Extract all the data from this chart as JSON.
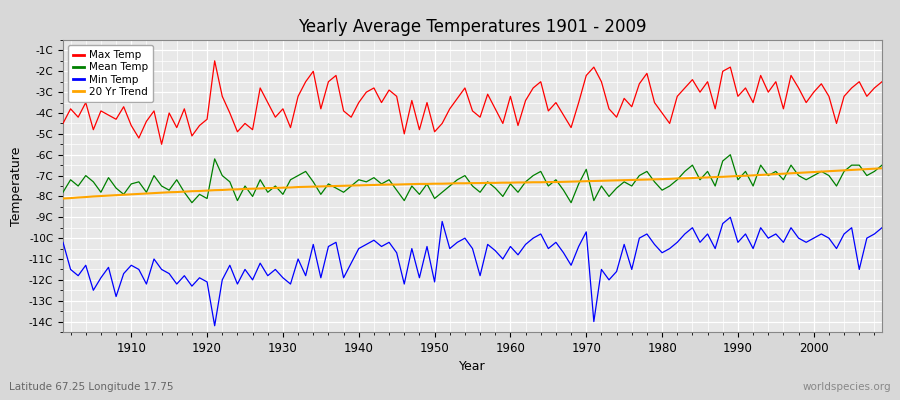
{
  "title": "Yearly Average Temperatures 1901 - 2009",
  "xlabel": "Year",
  "ylabel": "Temperature",
  "lat_lon_text": "Latitude 67.25 Longitude 17.75",
  "source_text": "worldspecies.org",
  "year_start": 1901,
  "year_end": 2009,
  "ylim": [
    -14.5,
    -0.5
  ],
  "yticks": [
    -14,
    -13,
    -12,
    -11,
    -10,
    -9,
    -8,
    -7,
    -6,
    -5,
    -4,
    -3,
    -2,
    -1
  ],
  "ytick_labels": [
    "-14C",
    "-13C",
    "-12C",
    "-11C",
    "-10C",
    "-9C",
    "-8C",
    "-7C",
    "-6C",
    "-5C",
    "-4C",
    "-3C",
    "-2C",
    "-1C"
  ],
  "max_temp_color": "#ff0000",
  "mean_temp_color": "#008000",
  "min_temp_color": "#0000ff",
  "trend_color": "#ffa500",
  "fig_bg_color": "#d8d8d8",
  "plot_bg_color": "#e8e8e8",
  "grid_color": "#ffffff",
  "legend_labels": [
    "Max Temp",
    "Mean Temp",
    "Min Temp",
    "20 Yr Trend"
  ],
  "max_temp": [
    -4.5,
    -3.8,
    -4.2,
    -3.5,
    -4.8,
    -3.9,
    -4.1,
    -4.3,
    -3.7,
    -4.6,
    -5.2,
    -4.4,
    -3.9,
    -5.5,
    -4.0,
    -4.7,
    -3.8,
    -5.1,
    -4.6,
    -4.3,
    -1.5,
    -3.2,
    -4.0,
    -4.9,
    -4.5,
    -4.8,
    -2.8,
    -3.5,
    -4.2,
    -3.8,
    -4.7,
    -3.2,
    -2.5,
    -2.0,
    -3.8,
    -2.5,
    -2.2,
    -3.9,
    -4.2,
    -3.5,
    -3.0,
    -2.8,
    -3.5,
    -2.9,
    -3.2,
    -5.0,
    -3.4,
    -4.8,
    -3.5,
    -4.9,
    -4.5,
    -3.8,
    -3.3,
    -2.8,
    -3.9,
    -4.2,
    -3.1,
    -3.8,
    -4.5,
    -3.2,
    -4.6,
    -3.4,
    -2.8,
    -2.5,
    -3.9,
    -3.5,
    -4.1,
    -4.7,
    -3.5,
    -2.2,
    -1.8,
    -2.5,
    -3.8,
    -4.2,
    -3.3,
    -3.7,
    -2.6,
    -2.1,
    -3.5,
    -4.0,
    -4.5,
    -3.2,
    -2.8,
    -2.4,
    -3.0,
    -2.5,
    -3.8,
    -2.0,
    -1.8,
    -3.2,
    -2.8,
    -3.5,
    -2.2,
    -3.0,
    -2.5,
    -3.8,
    -2.2,
    -2.8,
    -3.5,
    -3.0,
    -2.6,
    -3.2,
    -4.5,
    -3.2,
    -2.8,
    -2.5,
    -3.2,
    -2.8,
    -2.5
  ],
  "mean_temp": [
    -7.8,
    -7.2,
    -7.5,
    -7.0,
    -7.3,
    -7.8,
    -7.1,
    -7.6,
    -7.9,
    -7.4,
    -7.3,
    -7.8,
    -7.0,
    -7.5,
    -7.7,
    -7.2,
    -7.8,
    -8.3,
    -7.9,
    -8.1,
    -6.2,
    -7.0,
    -7.3,
    -8.2,
    -7.5,
    -8.0,
    -7.2,
    -7.8,
    -7.5,
    -7.9,
    -7.2,
    -7.0,
    -6.8,
    -7.3,
    -7.9,
    -7.4,
    -7.6,
    -7.8,
    -7.5,
    -7.2,
    -7.3,
    -7.1,
    -7.4,
    -7.2,
    -7.7,
    -8.2,
    -7.5,
    -7.9,
    -7.4,
    -8.1,
    -7.8,
    -7.5,
    -7.2,
    -7.0,
    -7.5,
    -7.8,
    -7.3,
    -7.6,
    -8.0,
    -7.4,
    -7.8,
    -7.3,
    -7.0,
    -6.8,
    -7.5,
    -7.2,
    -7.7,
    -8.3,
    -7.4,
    -6.7,
    -8.2,
    -7.5,
    -8.0,
    -7.6,
    -7.3,
    -7.5,
    -7.0,
    -6.8,
    -7.3,
    -7.7,
    -7.5,
    -7.2,
    -6.8,
    -6.5,
    -7.2,
    -6.8,
    -7.5,
    -6.3,
    -6.0,
    -7.2,
    -6.8,
    -7.5,
    -6.5,
    -7.0,
    -6.8,
    -7.2,
    -6.5,
    -7.0,
    -7.2,
    -7.0,
    -6.8,
    -7.0,
    -7.5,
    -6.8,
    -6.5,
    -6.5,
    -7.0,
    -6.8,
    -6.5
  ],
  "min_temp": [
    -10.2,
    -11.5,
    -11.8,
    -11.3,
    -12.5,
    -11.9,
    -11.4,
    -12.8,
    -11.7,
    -11.3,
    -11.5,
    -12.2,
    -11.0,
    -11.5,
    -11.7,
    -12.2,
    -11.8,
    -12.3,
    -11.9,
    -12.1,
    -14.2,
    -12.0,
    -11.3,
    -12.2,
    -11.5,
    -12.0,
    -11.2,
    -11.8,
    -11.5,
    -11.9,
    -12.2,
    -11.0,
    -11.8,
    -10.3,
    -11.9,
    -10.4,
    -10.2,
    -11.9,
    -11.2,
    -10.5,
    -10.3,
    -10.1,
    -10.4,
    -10.2,
    -10.7,
    -12.2,
    -10.5,
    -11.9,
    -10.4,
    -12.1,
    -9.2,
    -10.5,
    -10.2,
    -10.0,
    -10.5,
    -11.8,
    -10.3,
    -10.6,
    -11.0,
    -10.4,
    -10.8,
    -10.3,
    -10.0,
    -9.8,
    -10.5,
    -10.2,
    -10.7,
    -11.3,
    -10.4,
    -9.7,
    -14.0,
    -11.5,
    -12.0,
    -11.6,
    -10.3,
    -11.5,
    -10.0,
    -9.8,
    -10.3,
    -10.7,
    -10.5,
    -10.2,
    -9.8,
    -9.5,
    -10.2,
    -9.8,
    -10.5,
    -9.3,
    -9.0,
    -10.2,
    -9.8,
    -10.5,
    -9.5,
    -10.0,
    -9.8,
    -10.2,
    -9.5,
    -10.0,
    -10.2,
    -10.0,
    -9.8,
    -10.0,
    -10.5,
    -9.8,
    -9.5,
    -11.5,
    -10.0,
    -9.8,
    -9.5
  ],
  "trend_values": [
    -8.1,
    -8.08,
    -8.05,
    -8.03,
    -8.0,
    -7.98,
    -7.96,
    -7.94,
    -7.92,
    -7.9,
    -7.88,
    -7.86,
    -7.84,
    -7.82,
    -7.8,
    -7.79,
    -7.77,
    -7.75,
    -7.74,
    -7.72,
    -7.7,
    -7.69,
    -7.67,
    -7.66,
    -7.64,
    -7.63,
    -7.62,
    -7.6,
    -7.59,
    -7.58,
    -7.57,
    -7.55,
    -7.54,
    -7.53,
    -7.52,
    -7.51,
    -7.5,
    -7.49,
    -7.48,
    -7.47,
    -7.46,
    -7.45,
    -7.44,
    -7.43,
    -7.43,
    -7.42,
    -7.41,
    -7.4,
    -7.4,
    -7.39,
    -7.39,
    -7.38,
    -7.37,
    -7.37,
    -7.36,
    -7.36,
    -7.35,
    -7.35,
    -7.34,
    -7.34,
    -7.33,
    -7.33,
    -7.32,
    -7.32,
    -7.31,
    -7.31,
    -7.3,
    -7.29,
    -7.28,
    -7.27,
    -7.26,
    -7.25,
    -7.24,
    -7.23,
    -7.22,
    -7.21,
    -7.2,
    -7.19,
    -7.18,
    -7.17,
    -7.16,
    -7.14,
    -7.13,
    -7.12,
    -7.1,
    -7.09,
    -7.07,
    -7.06,
    -7.04,
    -7.02,
    -7.01,
    -6.99,
    -6.97,
    -6.95,
    -6.93,
    -6.91,
    -6.89,
    -6.87,
    -6.85,
    -6.83,
    -6.81,
    -6.79,
    -6.77,
    -6.75,
    -6.73,
    -6.71,
    -6.69,
    -6.67,
    -6.65
  ]
}
